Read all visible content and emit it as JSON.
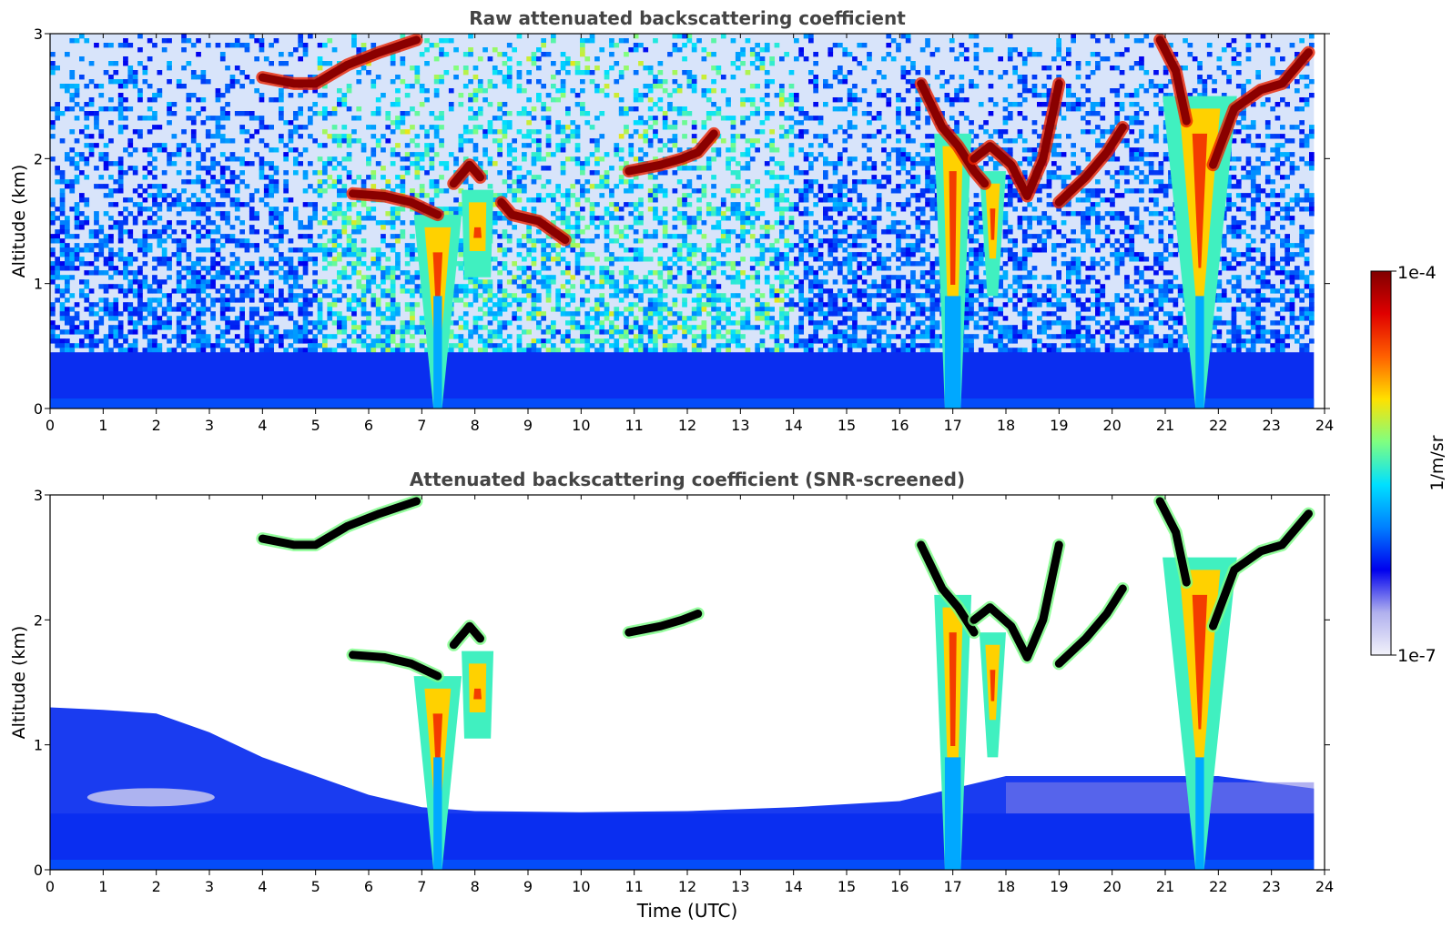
{
  "figure": {
    "colorbar": {
      "label": "1/m/sr",
      "max_label": "1e-4",
      "min_label": "1e-7",
      "scale": "log",
      "colormap": [
        "#f2f2fa",
        "#b0b0ee",
        "#0000ee",
        "#0080ff",
        "#00e0ff",
        "#80ff80",
        "#ffe000",
        "#ff6000",
        "#e00000",
        "#800000"
      ]
    },
    "xlabel": "Time (UTC)"
  },
  "chart_data": [
    {
      "type": "heatmap",
      "title": "Raw attenuated backscattering coefficient",
      "ylabel": "Altitude (km)",
      "xlabel": "",
      "xlim": [
        0,
        24
      ],
      "ylim": [
        0,
        3
      ],
      "x_ticks": [
        "0",
        "1",
        "2",
        "3",
        "4",
        "5",
        "6",
        "7",
        "8",
        "9",
        "10",
        "11",
        "12",
        "13",
        "14",
        "15",
        "16",
        "17",
        "18",
        "19",
        "20",
        "21",
        "22",
        "23",
        "24"
      ],
      "y_ticks": [
        "0",
        "1",
        "2",
        "3"
      ],
      "data_end_hour": 23.8,
      "screened": false,
      "features": [
        {
          "kind": "boundary-layer",
          "top_km": 0.45
        },
        {
          "kind": "cloud-layer",
          "points": [
            [
              4.0,
              2.65
            ],
            [
              4.6,
              2.6
            ],
            [
              5.0,
              2.6
            ],
            [
              5.6,
              2.75
            ],
            [
              6.2,
              2.85
            ],
            [
              6.9,
              2.95
            ]
          ]
        },
        {
          "kind": "cloud-layer",
          "points": [
            [
              5.7,
              1.72
            ],
            [
              6.3,
              1.7
            ],
            [
              6.8,
              1.65
            ],
            [
              7.3,
              1.55
            ]
          ]
        },
        {
          "kind": "cloud-layer",
          "points": [
            [
              7.6,
              1.8
            ],
            [
              7.9,
              1.95
            ],
            [
              8.1,
              1.85
            ]
          ]
        },
        {
          "kind": "cloud-layer",
          "points": [
            [
              8.5,
              1.65
            ],
            [
              8.7,
              1.55
            ],
            [
              9.2,
              1.5
            ],
            [
              9.7,
              1.35
            ]
          ]
        },
        {
          "kind": "cloud-layer",
          "points": [
            [
              10.9,
              1.9
            ],
            [
              11.5,
              1.95
            ],
            [
              11.9,
              2.0
            ],
            [
              12.2,
              2.05
            ],
            [
              12.5,
              2.2
            ]
          ]
        },
        {
          "kind": "cloud-layer",
          "points": [
            [
              16.4,
              2.6
            ],
            [
              16.8,
              2.25
            ],
            [
              17.1,
              2.1
            ],
            [
              17.4,
              1.9
            ],
            [
              17.6,
              1.8
            ]
          ]
        },
        {
          "kind": "cloud-layer",
          "points": [
            [
              17.4,
              2.0
            ],
            [
              17.7,
              2.1
            ],
            [
              18.1,
              1.95
            ],
            [
              18.4,
              1.7
            ],
            [
              18.7,
              2.0
            ],
            [
              19.0,
              2.6
            ]
          ]
        },
        {
          "kind": "cloud-layer",
          "points": [
            [
              19.0,
              1.65
            ],
            [
              19.5,
              1.85
            ],
            [
              19.9,
              2.05
            ],
            [
              20.2,
              2.25
            ]
          ]
        },
        {
          "kind": "cloud-layer",
          "points": [
            [
              20.9,
              2.95
            ],
            [
              21.2,
              2.7
            ],
            [
              21.4,
              2.3
            ]
          ]
        },
        {
          "kind": "cloud-layer",
          "points": [
            [
              21.9,
              1.95
            ],
            [
              22.3,
              2.4
            ],
            [
              22.8,
              2.55
            ],
            [
              23.2,
              2.6
            ],
            [
              23.7,
              2.85
            ]
          ]
        },
        {
          "kind": "precipitation",
          "x_center": 7.3,
          "top_km": 1.55,
          "top_halfwidth_h": 0.45,
          "bottom_halfwidth_h": 0.08
        },
        {
          "kind": "precipitation",
          "x_center": 8.05,
          "top_km": 1.75,
          "top_halfwidth_h": 0.3,
          "bottom_halfwidth_h": 0.25,
          "bottom_km": 1.05
        },
        {
          "kind": "precipitation",
          "x_center": 17.0,
          "top_km": 2.2,
          "top_halfwidth_h": 0.35,
          "bottom_halfwidth_h": 0.15
        },
        {
          "kind": "precipitation",
          "x_center": 17.75,
          "top_km": 1.9,
          "top_halfwidth_h": 0.25,
          "bottom_halfwidth_h": 0.1,
          "bottom_km": 0.9
        },
        {
          "kind": "precipitation",
          "x_center": 21.65,
          "top_km": 2.5,
          "top_halfwidth_h": 0.7,
          "bottom_halfwidth_h": 0.08
        }
      ]
    },
    {
      "type": "heatmap",
      "title": "Attenuated backscattering coefficient (SNR-screened)",
      "ylabel": "Altitude (km)",
      "xlabel": "Time (UTC)",
      "xlim": [
        0,
        24
      ],
      "ylim": [
        0,
        3
      ],
      "x_ticks": [
        "0",
        "1",
        "2",
        "3",
        "4",
        "5",
        "6",
        "7",
        "8",
        "9",
        "10",
        "11",
        "12",
        "13",
        "14",
        "15",
        "16",
        "17",
        "18",
        "19",
        "20",
        "21",
        "22",
        "23",
        "24"
      ],
      "y_ticks": [
        "0",
        "1",
        "2",
        "3"
      ],
      "data_end_hour": 23.8,
      "screened": true,
      "features": [
        {
          "kind": "boundary-layer",
          "points": [
            [
              0,
              1.3
            ],
            [
              1,
              1.28
            ],
            [
              2,
              1.25
            ],
            [
              3,
              1.1
            ],
            [
              4,
              0.9
            ],
            [
              5,
              0.75
            ],
            [
              6,
              0.6
            ],
            [
              7,
              0.5
            ],
            [
              8,
              0.47
            ],
            [
              10,
              0.46
            ],
            [
              12,
              0.47
            ],
            [
              14,
              0.5
            ],
            [
              16,
              0.55
            ],
            [
              18,
              0.75
            ],
            [
              20,
              0.75
            ],
            [
              22,
              0.75
            ],
            [
              23.8,
              0.65
            ]
          ]
        },
        {
          "kind": "cloud-layer",
          "points": [
            [
              4.0,
              2.65
            ],
            [
              4.6,
              2.6
            ],
            [
              5.0,
              2.6
            ],
            [
              5.6,
              2.75
            ],
            [
              6.2,
              2.85
            ],
            [
              6.9,
              2.95
            ]
          ]
        },
        {
          "kind": "cloud-layer",
          "points": [
            [
              5.7,
              1.72
            ],
            [
              6.3,
              1.7
            ],
            [
              6.8,
              1.65
            ],
            [
              7.3,
              1.55
            ]
          ]
        },
        {
          "kind": "cloud-layer",
          "points": [
            [
              7.6,
              1.8
            ],
            [
              7.9,
              1.95
            ],
            [
              8.1,
              1.85
            ]
          ]
        },
        {
          "kind": "cloud-layer",
          "points": [
            [
              10.9,
              1.9
            ],
            [
              11.5,
              1.95
            ],
            [
              11.9,
              2.0
            ],
            [
              12.2,
              2.05
            ]
          ]
        },
        {
          "kind": "cloud-layer",
          "points": [
            [
              16.4,
              2.6
            ],
            [
              16.8,
              2.25
            ],
            [
              17.1,
              2.1
            ],
            [
              17.4,
              1.9
            ]
          ]
        },
        {
          "kind": "cloud-layer",
          "points": [
            [
              17.4,
              2.0
            ],
            [
              17.7,
              2.1
            ],
            [
              18.1,
              1.95
            ],
            [
              18.4,
              1.7
            ],
            [
              18.7,
              2.0
            ],
            [
              19.0,
              2.6
            ]
          ]
        },
        {
          "kind": "cloud-layer",
          "points": [
            [
              19.0,
              1.65
            ],
            [
              19.5,
              1.85
            ],
            [
              19.9,
              2.05
            ],
            [
              20.2,
              2.25
            ]
          ]
        },
        {
          "kind": "cloud-layer",
          "points": [
            [
              20.9,
              2.95
            ],
            [
              21.2,
              2.7
            ],
            [
              21.4,
              2.3
            ]
          ]
        },
        {
          "kind": "cloud-layer",
          "points": [
            [
              21.9,
              1.95
            ],
            [
              22.3,
              2.4
            ],
            [
              22.8,
              2.55
            ],
            [
              23.2,
              2.6
            ],
            [
              23.7,
              2.85
            ]
          ]
        },
        {
          "kind": "precipitation",
          "x_center": 7.3,
          "top_km": 1.55,
          "top_halfwidth_h": 0.45,
          "bottom_halfwidth_h": 0.08
        },
        {
          "kind": "precipitation",
          "x_center": 8.05,
          "top_km": 1.75,
          "top_halfwidth_h": 0.3,
          "bottom_halfwidth_h": 0.25,
          "bottom_km": 1.05
        },
        {
          "kind": "precipitation",
          "x_center": 17.0,
          "top_km": 2.2,
          "top_halfwidth_h": 0.35,
          "bottom_halfwidth_h": 0.15
        },
        {
          "kind": "precipitation",
          "x_center": 17.75,
          "top_km": 1.9,
          "top_halfwidth_h": 0.25,
          "bottom_halfwidth_h": 0.1,
          "bottom_km": 0.9
        },
        {
          "kind": "precipitation",
          "x_center": 21.65,
          "top_km": 2.5,
          "top_halfwidth_h": 0.7,
          "bottom_halfwidth_h": 0.08
        }
      ]
    }
  ]
}
